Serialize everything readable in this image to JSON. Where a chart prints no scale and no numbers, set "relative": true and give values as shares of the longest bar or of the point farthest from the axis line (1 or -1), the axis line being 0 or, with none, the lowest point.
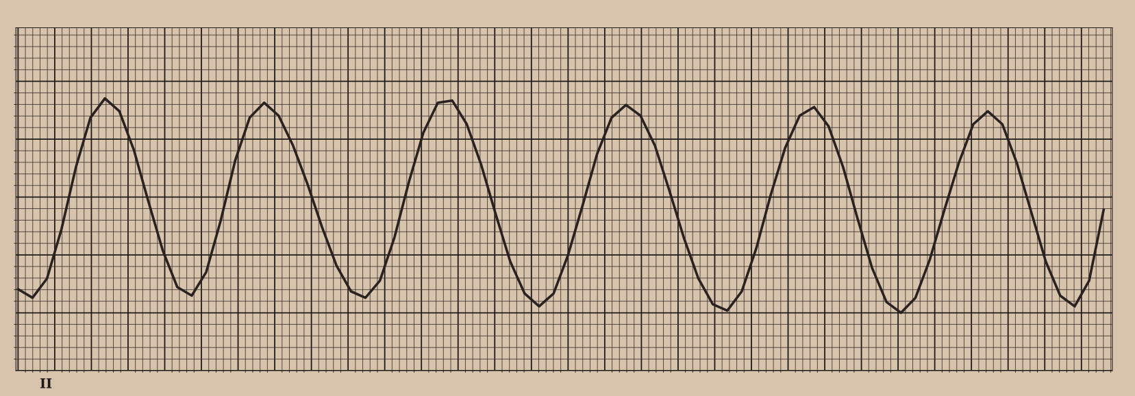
{
  "chart_data": {
    "type": "line",
    "relative": true,
    "grid": true,
    "marker": "none",
    "line_style": "solid",
    "tick_labels": false,
    "annotations": [
      "II"
    ],
    "categories": [
      null,
      null,
      null,
      null,
      null,
      null,
      null,
      null,
      null,
      null,
      null,
      null,
      null,
      null,
      null,
      null,
      null,
      null,
      null,
      null,
      null,
      null,
      null,
      null,
      null,
      null,
      null,
      null,
      null,
      null,
      null,
      null,
      null,
      null,
      null,
      null,
      null,
      null,
      null,
      null,
      null,
      null,
      null,
      null,
      null,
      null,
      null,
      null,
      null,
      null,
      null,
      null,
      null,
      null,
      null,
      null,
      null,
      null,
      null,
      null,
      null,
      null,
      null,
      null,
      null,
      null,
      null,
      null,
      null,
      null,
      null,
      null,
      null,
      null,
      null,
      null
    ],
    "series": [
      {
        "color": "#2a2220",
        "values": [
          0.11,
          0.07,
          0.16,
          0.39,
          0.68,
          0.91,
          1.0,
          0.94,
          0.76,
          0.52,
          0.29,
          0.12,
          0.08,
          0.19,
          0.43,
          0.71,
          0.91,
          0.98,
          0.92,
          0.78,
          0.6,
          0.4,
          0.22,
          0.1,
          0.07,
          0.15,
          0.35,
          0.61,
          0.84,
          0.98,
          0.99,
          0.88,
          0.69,
          0.46,
          0.24,
          0.09,
          0.03,
          0.09,
          0.27,
          0.5,
          0.74,
          0.91,
          0.97,
          0.92,
          0.78,
          0.57,
          0.35,
          0.16,
          0.04,
          0.01,
          0.1,
          0.3,
          0.55,
          0.77,
          0.92,
          0.96,
          0.87,
          0.68,
          0.44,
          0.21,
          0.05,
          0.0,
          0.07,
          0.25,
          0.48,
          0.7,
          0.88,
          0.94,
          0.88,
          0.7,
          0.47,
          0.24,
          0.08,
          0.03,
          0.15,
          0.48
        ]
      }
    ]
  }
}
